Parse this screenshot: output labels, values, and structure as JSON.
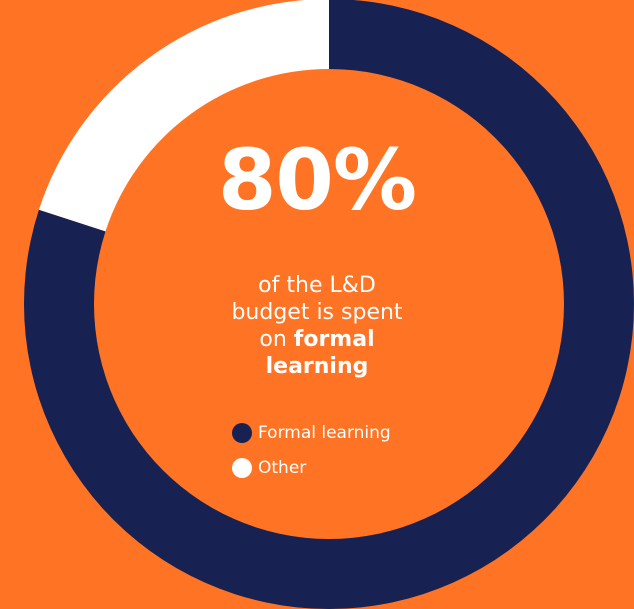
{
  "colors": {
    "background": "#FF7424",
    "formal": "#172152",
    "other": "#FFFFFF"
  },
  "headline": {
    "value": "80%",
    "text_part1": "of the L&D",
    "text_part2": "budget is spent",
    "text_part3": "on",
    "text_bold1": "formal",
    "text_bold2": "learning"
  },
  "chart_data": {
    "type": "pie",
    "style": "donut",
    "categories": [
      "Formal learning",
      "Other"
    ],
    "values": [
      80,
      20
    ],
    "colors": [
      "#172152",
      "#FFFFFF"
    ],
    "legend_placement": "center"
  }
}
